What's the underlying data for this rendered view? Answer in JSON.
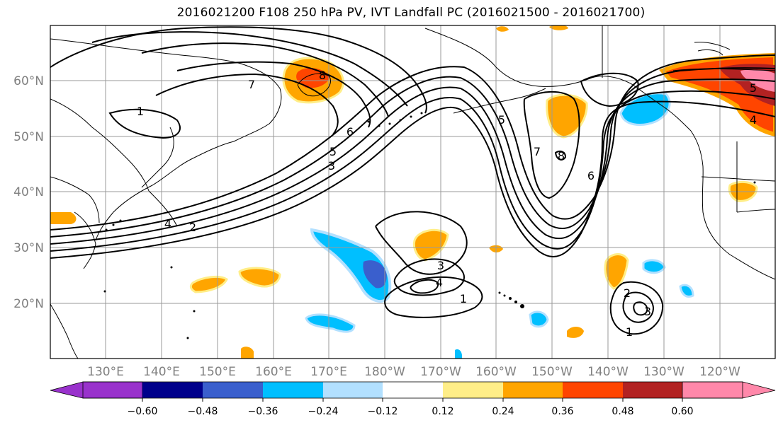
{
  "title": "2016021200 F108 250 hPa PV, IVT Landfall PC (2016021500 - 2016021700)",
  "map": {
    "lat_labels": [
      "60°N",
      "50°N",
      "40°N",
      "30°N",
      "20°N"
    ],
    "lon_labels": [
      "130°E",
      "140°E",
      "150°E",
      "160°E",
      "170°E",
      "180°W",
      "170°W",
      "160°W",
      "150°W",
      "140°W",
      "130°W",
      "120°W"
    ],
    "contour_labels": [
      "7",
      "8",
      "6",
      "5",
      "3",
      "4",
      "2",
      "1",
      "5",
      "7",
      "8",
      "6",
      "3",
      "4",
      "1",
      "2",
      "3",
      "1",
      "5",
      "4"
    ]
  },
  "colorbar": {
    "tick_labels": [
      "−0.60",
      "−0.48",
      "−0.36",
      "−0.24",
      "−0.12",
      "0.12",
      "0.24",
      "0.36",
      "0.48",
      "0.60"
    ],
    "colors": [
      "#9932cc",
      "#00008b",
      "#3a5fcd",
      "#00bfff",
      "#b2e0ff",
      "#ffffff",
      "#ffee88",
      "#ffa500",
      "#ff4500",
      "#b22222",
      "#ff88aa"
    ]
  }
}
